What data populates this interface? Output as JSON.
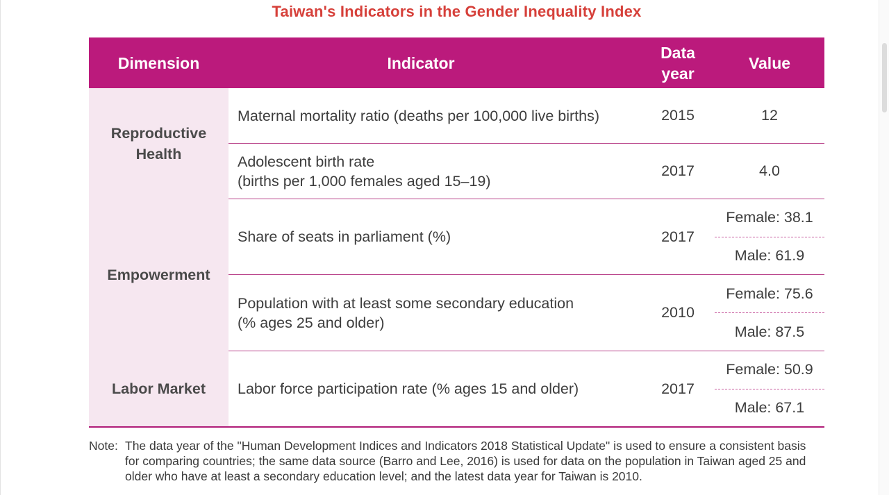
{
  "title": "Taiwan's Indicators in the Gender Inequality Index",
  "headers": {
    "dimension": "Dimension",
    "indicator": "Indicator",
    "data_year_line1": "Data",
    "data_year_line2": "year",
    "value": "Value"
  },
  "groups": {
    "reproductive": {
      "line1": "Reproductive",
      "line2": "Health"
    },
    "empowerment": {
      "label": "Empowerment"
    },
    "labor": {
      "label": "Labor Market"
    }
  },
  "rows": [
    {
      "indicator_line1": "Maternal mortality ratio (deaths per 100,000 live births)",
      "year": "2015",
      "value": "12"
    },
    {
      "indicator_line1": "Adolescent birth rate",
      "indicator_line2": "(births per 1,000 females aged 15–19)",
      "year": "2017",
      "value": "4.0"
    },
    {
      "indicator_line1": "Share of seats in parliament (%)",
      "year": "2017",
      "female": "Female: 38.1",
      "male": "Male: 61.9"
    },
    {
      "indicator_line1": "Population with at least some secondary education",
      "indicator_line2": "(% ages 25 and older)",
      "year": "2010",
      "female": "Female: 75.6",
      "male": "Male: 87.5"
    },
    {
      "indicator_line1": "Labor force participation rate (% ages 15 and older)",
      "year": "2017",
      "female": "Female: 50.9",
      "male": "Male: 67.1"
    }
  ],
  "note": {
    "label": "Note:",
    "text": "The data year of the \"Human Development Indices and Indicators 2018 Statistical Update\" is used to ensure a consistent basis for comparing countries; the same data source (Barro and Lee, 2016) is used for data on the population in Taiwan aged 25 and older who have at least a secondary education level; and the latest data year for Taiwan is 2010."
  }
}
